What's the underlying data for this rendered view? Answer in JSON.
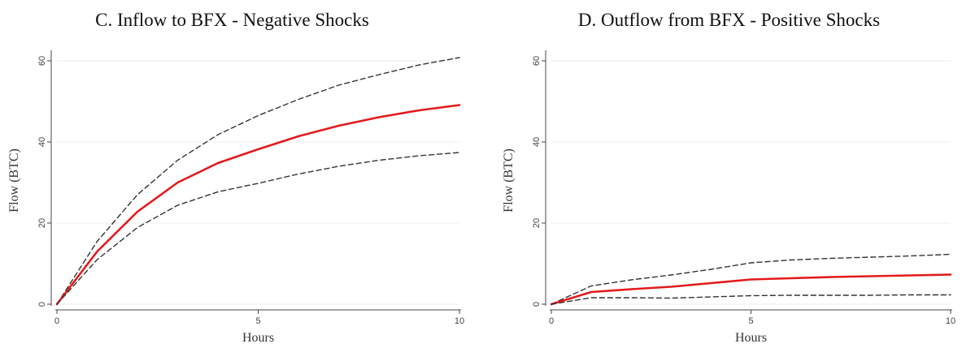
{
  "chart_data": [
    {
      "type": "line",
      "title": "C. Inflow to BFX - Negative Shocks",
      "xlabel": "Hours",
      "ylabel": "Flow (BTC)",
      "xlim": [
        0,
        10
      ],
      "ylim": [
        0,
        61
      ],
      "xticks": [
        0,
        5,
        10
      ],
      "yticks": [
        0,
        20,
        40,
        60
      ],
      "grid": true,
      "x": [
        0,
        1,
        2,
        3,
        4,
        5,
        6,
        7,
        8,
        9,
        10
      ],
      "series": [
        {
          "role": "upper",
          "color": "#333333",
          "style": "dashed",
          "values": [
            0,
            15.5,
            27,
            35.5,
            41.8,
            46.5,
            50.5,
            54,
            56.6,
            59,
            60.8
          ]
        },
        {
          "role": "estimate",
          "color": "#e31a1c",
          "style": "solid",
          "values": [
            0,
            13,
            22.8,
            30,
            34.8,
            38.2,
            41.4,
            44,
            46.1,
            47.8,
            49.1
          ]
        },
        {
          "role": "lower",
          "color": "#333333",
          "style": "dashed",
          "values": [
            0,
            11,
            18.9,
            24.4,
            27.7,
            29.8,
            32.1,
            34,
            35.5,
            36.6,
            37.4
          ]
        }
      ]
    },
    {
      "type": "line",
      "title": "D. Outflow from BFX - Positive Shocks",
      "xlabel": "Hours",
      "ylabel": "Flow (BTC)",
      "xlim": [
        0,
        10
      ],
      "ylim": [
        0,
        61
      ],
      "xticks": [
        0,
        5,
        10
      ],
      "yticks": [
        0,
        20,
        40,
        60
      ],
      "grid": true,
      "x": [
        0,
        1,
        2,
        3,
        4,
        5,
        6,
        7,
        8,
        9,
        10
      ],
      "series": [
        {
          "role": "upper",
          "color": "#333333",
          "style": "dashed",
          "values": [
            0,
            4.5,
            6,
            7.2,
            8.6,
            10.2,
            10.9,
            11.3,
            11.6,
            11.9,
            12.3
          ]
        },
        {
          "role": "estimate",
          "color": "#e31a1c",
          "style": "solid",
          "values": [
            0,
            3,
            3.7,
            4.3,
            5.2,
            6.1,
            6.4,
            6.7,
            6.9,
            7.1,
            7.3
          ]
        },
        {
          "role": "lower",
          "color": "#333333",
          "style": "dashed",
          "values": [
            0,
            1.6,
            1.6,
            1.5,
            1.8,
            2.1,
            2.2,
            2.2,
            2.2,
            2.3,
            2.3
          ]
        }
      ]
    }
  ]
}
